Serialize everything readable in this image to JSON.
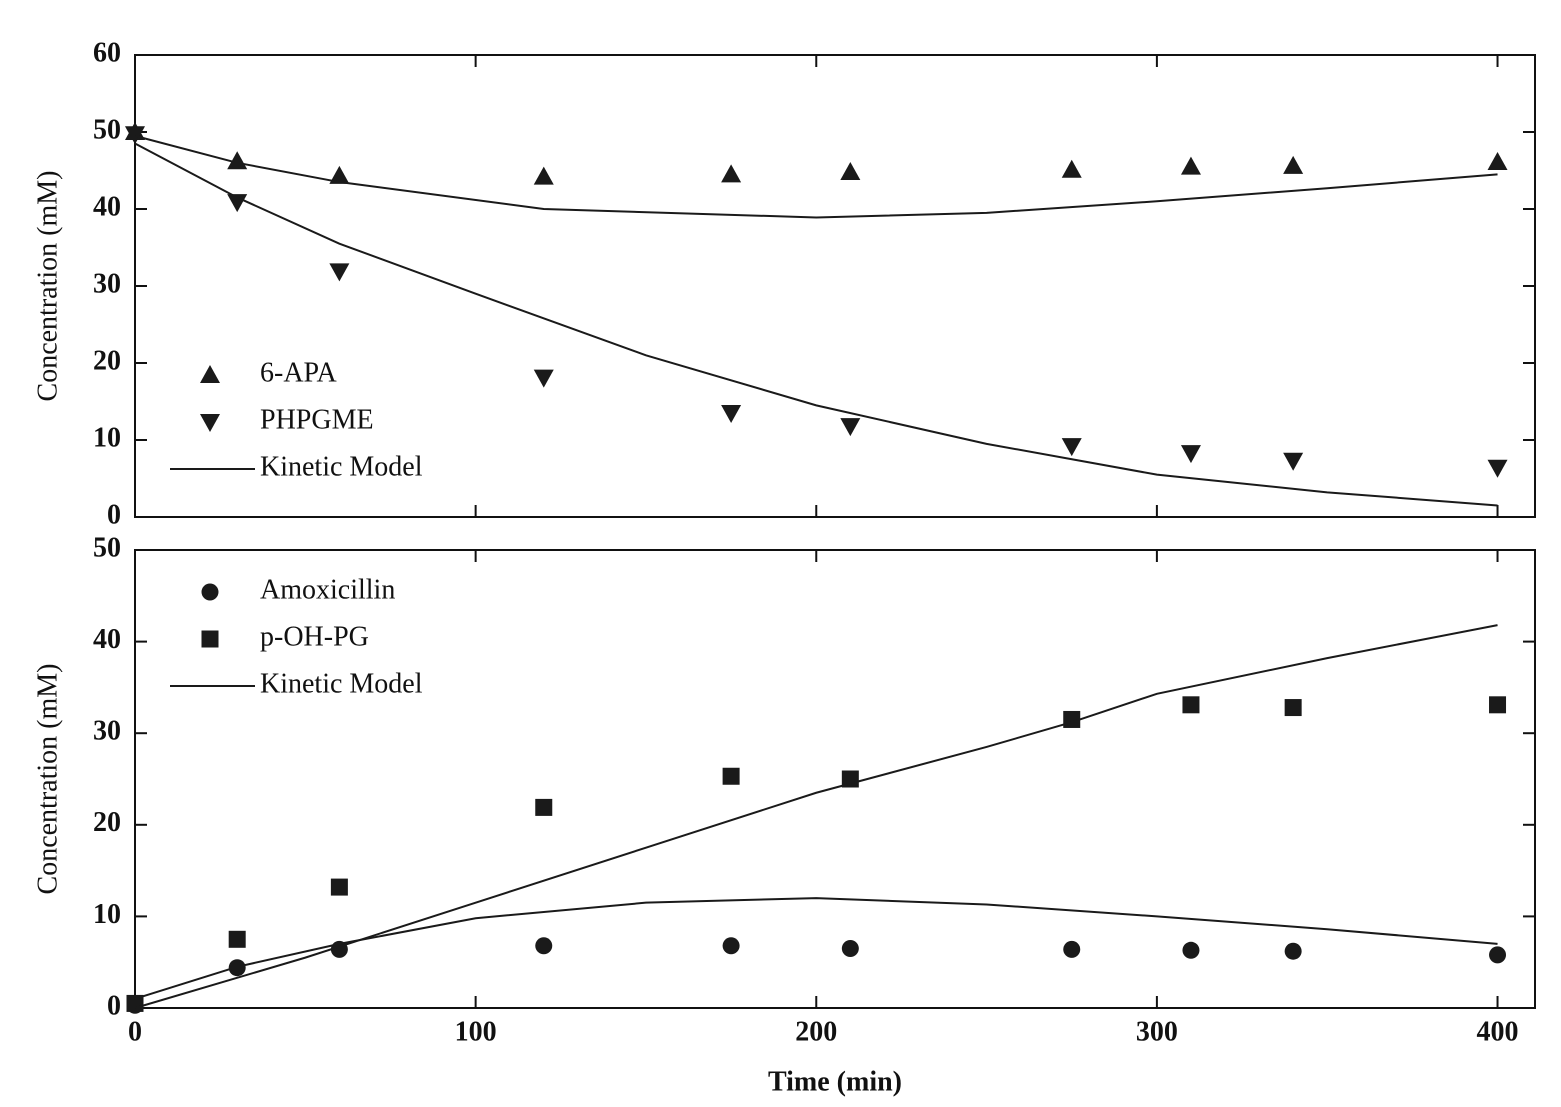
{
  "chart_data": [
    {
      "type": "scatter-line",
      "ylabel": "Concentration (mM)",
      "x": [
        0,
        30,
        60,
        120,
        175,
        210,
        275,
        310,
        340,
        400
      ],
      "xlim": [
        0,
        411
      ],
      "xticks": [
        0,
        100,
        200,
        300,
        400
      ],
      "xtick_labels": false,
      "ylim": [
        0,
        60
      ],
      "yticks": [
        0,
        10,
        20,
        30,
        40,
        50,
        60
      ],
      "legend": "lower left",
      "series": [
        {
          "name": "6-APA",
          "marker": "triangle-up",
          "color": "#1a1a1a",
          "values": [
            50,
            46.2,
            44.3,
            44.2,
            44.5,
            44.8,
            45.1,
            45.5,
            45.6,
            46.1
          ]
        },
        {
          "name": "PHPGME",
          "marker": "triangle-down",
          "color": "#1a1a1a",
          "values": [
            49.7,
            40.9,
            31.9,
            18.1,
            13.5,
            11.8,
            9.2,
            8.3,
            7.3,
            6.4
          ]
        },
        {
          "name": "Kinetic Model",
          "marker": "line",
          "color": "#1a1a1a",
          "x": [
            0,
            30,
            60,
            120,
            200,
            250,
            300,
            350,
            400
          ],
          "values": [
            49.5,
            46,
            43.5,
            40,
            38.9,
            39.5,
            41,
            42.7,
            44.5
          ]
        },
        {
          "marker": "line",
          "color": "#1a1a1a",
          "x": [
            0,
            30,
            60,
            100,
            150,
            200,
            250,
            300,
            350,
            400
          ],
          "values": [
            48.5,
            41.5,
            35.5,
            29,
            21,
            14.5,
            9.5,
            5.5,
            3.2,
            1.5
          ]
        }
      ]
    },
    {
      "type": "scatter-line",
      "ylabel": "Concentration (mM)",
      "xlabel": "Time (min)",
      "x": [
        0,
        30,
        60,
        120,
        175,
        210,
        275,
        310,
        340,
        400
      ],
      "xlim": [
        0,
        411
      ],
      "xticks": [
        0,
        100,
        200,
        300,
        400
      ],
      "xtick_labels": true,
      "ylim": [
        0,
        50
      ],
      "yticks": [
        0,
        10,
        20,
        30,
        40,
        50
      ],
      "legend": "upper left",
      "series": [
        {
          "name": "Amoxicillin",
          "marker": "circle",
          "color": "#1a1a1a",
          "values": [
            0.3,
            4.4,
            6.4,
            6.8,
            6.8,
            6.5,
            6.4,
            6.3,
            6.2,
            5.8
          ]
        },
        {
          "name": "p-OH-PG",
          "marker": "square",
          "color": "#1a1a1a",
          "values": [
            0.5,
            7.5,
            13.2,
            21.9,
            25.3,
            25.0,
            31.5,
            33.1,
            32.8,
            33.1
          ]
        },
        {
          "name": "Kinetic Model",
          "marker": "line",
          "color": "#1a1a1a",
          "x": [
            0,
            30,
            60,
            100,
            150,
            200,
            250,
            300,
            350,
            400
          ],
          "values": [
            1.0,
            4.5,
            7,
            9.8,
            11.5,
            12,
            11.3,
            10,
            8.6,
            7.0
          ]
        },
        {
          "marker": "line",
          "color": "#1a1a1a",
          "x": [
            0,
            50,
            100,
            150,
            200,
            250,
            275,
            300,
            350,
            400
          ],
          "values": [
            0,
            5.5,
            11.5,
            17.5,
            23.5,
            28.5,
            31.2,
            34.3,
            38.2,
            41.8
          ]
        }
      ]
    }
  ]
}
